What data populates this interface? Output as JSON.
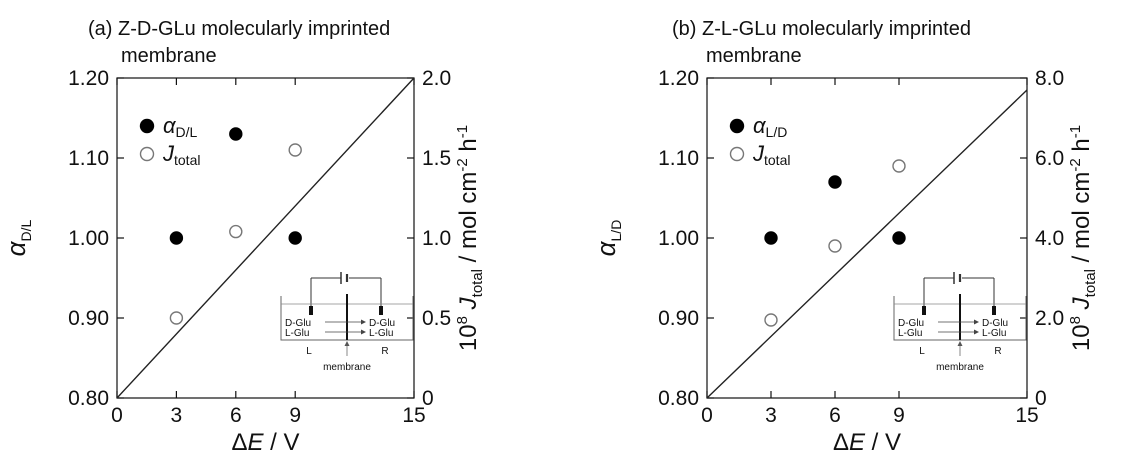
{
  "chart_data": [
    {
      "type": "scatter",
      "title": "(a) Z-D-GLu molecularly imprinted membrane",
      "title_lines": [
        "(a) Z-D-GLu molecularly imprinted",
        "membrane"
      ],
      "xlabel": "ΔE / V",
      "xlim": [
        0,
        15
      ],
      "xticks": [
        0,
        3,
        6,
        9,
        15
      ],
      "ylabel_left": "α D/L",
      "ylim_left": [
        0.8,
        1.2
      ],
      "yticks_left": [
        "0.80",
        "0.90",
        "1.00",
        "1.10",
        "1.20"
      ],
      "ylabel_right": "10^8 J_total / mol cm^-2 h^-1",
      "ylim_right": [
        0,
        2.0
      ],
      "yticks_right": [
        "0",
        "0.5",
        "1.0",
        "1.5",
        "2.0"
      ],
      "legend_position": "top-left",
      "series": [
        {
          "name": "α D/L",
          "axis": "left",
          "marker": "filled-circle",
          "x": [
            3,
            6,
            9
          ],
          "y": [
            1.0,
            1.13,
            1.0
          ]
        },
        {
          "name": "J total",
          "axis": "right",
          "marker": "open-circle",
          "x": [
            3,
            6,
            9
          ],
          "y": [
            0.5,
            1.04,
            1.55
          ]
        }
      ],
      "fit_line": {
        "axis": "right",
        "from": [
          0,
          0
        ],
        "to": [
          15,
          2.0
        ]
      },
      "legend": [
        {
          "symbol": "α",
          "sub": "D/L",
          "marker": "filled"
        },
        {
          "symbol": "J",
          "sub": "total",
          "marker": "open"
        }
      ],
      "inset": {
        "labels": [
          "D-Glu",
          "L-Glu",
          "D-Glu",
          "L-Glu",
          "L",
          "R",
          "membrane"
        ]
      }
    },
    {
      "type": "scatter",
      "title": "(b) Z-L-GLu molecularly imprinted membrane",
      "title_lines": [
        "(b) Z-L-GLu molecularly imprinted",
        "membrane"
      ],
      "xlabel": "ΔE / V",
      "xlim": [
        0,
        15
      ],
      "xticks": [
        0,
        3,
        6,
        9,
        15
      ],
      "ylabel_left": "α L/D",
      "ylim_left": [
        0.8,
        1.2
      ],
      "yticks_left": [
        "0.80",
        "0.90",
        "1.00",
        "1.10",
        "1.20"
      ],
      "ylabel_right": "10^8 J_total / mol cm^-2 h^-1",
      "ylim_right": [
        0,
        8.0
      ],
      "yticks_right": [
        "0",
        "2.0",
        "4.0",
        "6.0",
        "8.0"
      ],
      "legend_position": "top-left",
      "series": [
        {
          "name": "α L/D",
          "axis": "left",
          "marker": "filled-circle",
          "x": [
            3,
            6,
            9
          ],
          "y": [
            1.0,
            1.07,
            1.0
          ]
        },
        {
          "name": "J total",
          "axis": "right",
          "marker": "open-circle",
          "x": [
            3,
            6,
            9
          ],
          "y": [
            1.95,
            3.8,
            5.8
          ]
        }
      ],
      "fit_line": {
        "axis": "right",
        "from": [
          0,
          0
        ],
        "to": [
          15,
          7.7
        ]
      },
      "legend": [
        {
          "symbol": "α",
          "sub": "L/D",
          "marker": "filled"
        },
        {
          "symbol": "J",
          "sub": "total",
          "marker": "open"
        }
      ],
      "inset": {
        "labels": [
          "D-Glu",
          "L-Glu",
          "D-Glu",
          "L-Glu",
          "L",
          "R",
          "membrane"
        ]
      }
    }
  ]
}
